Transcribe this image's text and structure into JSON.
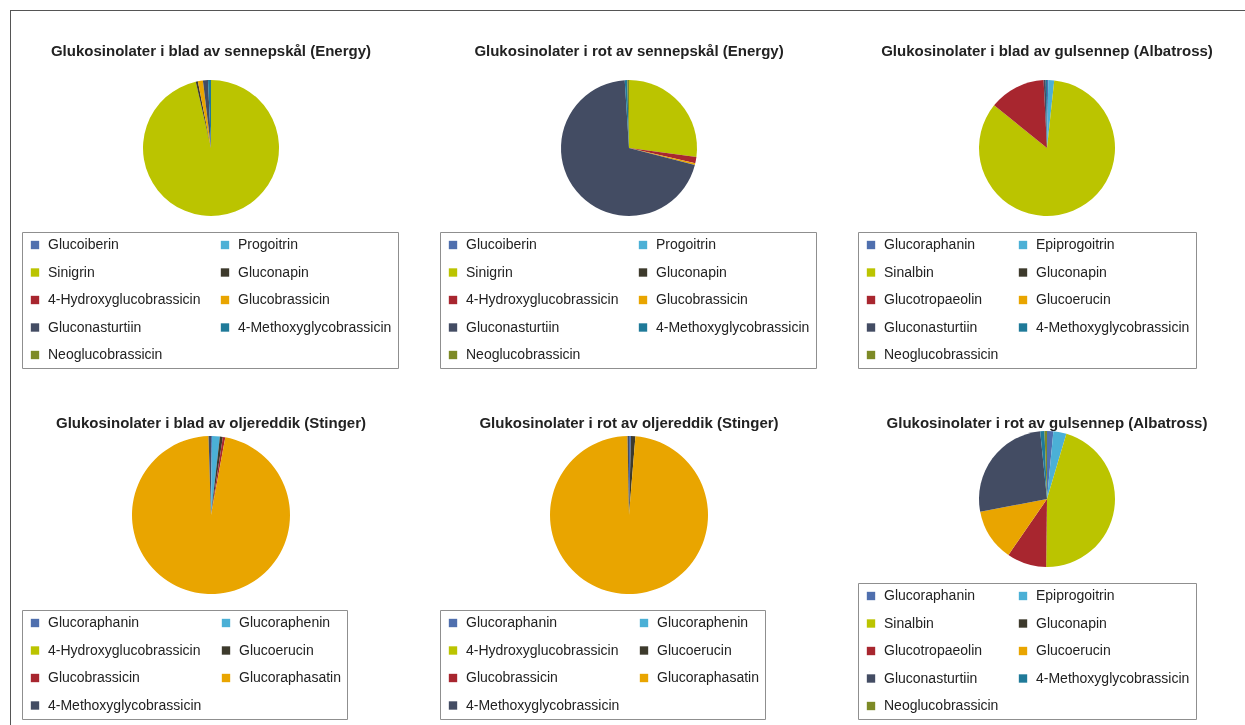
{
  "chart_data": [
    {
      "type": "pie",
      "title": "Glukosinolater i blad av sennepskål (Energy)",
      "categories": [
        "Glucoiberin",
        "Progoitrin",
        "Sinigrin",
        "Gluconapin",
        "4-Hydroxyglucobrassicin",
        "Glucobrassicin",
        "Gluconasturtiin",
        "4-Methoxyglycobrassicin",
        "Neoglucobrassicin"
      ],
      "values": [
        0,
        0,
        96.4,
        0.5,
        0,
        1.2,
        1.2,
        0.7,
        0
      ],
      "colors": [
        "#4f6fae",
        "#4bb0d6",
        "#bbc400",
        "#3d3a2c",
        "#a8262f",
        "#e9a500",
        "#434c63",
        "#1f7a99",
        "#7d8a26"
      ],
      "legend": "bottom"
    },
    {
      "type": "pie",
      "title": "Glukosinolater i rot av sennepskål (Energy)",
      "categories": [
        "Glucoiberin",
        "Progoitrin",
        "Sinigrin",
        "Gluconapin",
        "4-Hydroxyglucobrassicin",
        "Glucobrassicin",
        "Gluconasturtiin",
        "4-Methoxyglycobrassicin",
        "Neoglucobrassicin"
      ],
      "values": [
        0,
        0,
        27.1,
        0,
        1.5,
        0.4,
        70.0,
        0.6,
        0.4
      ],
      "colors": [
        "#4f6fae",
        "#4bb0d6",
        "#bbc400",
        "#3d3a2c",
        "#a8262f",
        "#e9a500",
        "#434c63",
        "#1f7a99",
        "#7d8a26"
      ],
      "legend": "bottom"
    },
    {
      "type": "pie",
      "title": "Glukosinolater i blad av gulsennep (Albatross)",
      "categories": [
        "Glucoraphanin",
        "Epiprogoitrin",
        "Sinalbin",
        "Gluconapin",
        "Glucotropaeolin",
        "Glucoerucin",
        "Gluconasturtiin",
        "4-Methoxyglycobrassicin",
        "Neoglucobrassicin"
      ],
      "values": [
        0.3,
        1.4,
        84.1,
        0,
        13.4,
        0,
        0.5,
        0.3,
        0
      ],
      "colors": [
        "#4f6fae",
        "#4bb0d6",
        "#bbc400",
        "#3d3a2c",
        "#a8262f",
        "#e9a500",
        "#434c63",
        "#1f7a99",
        "#7d8a26"
      ],
      "legend": "bottom"
    },
    {
      "type": "pie",
      "title": "Glukosinolater i blad av oljereddik (Stinger)",
      "categories": [
        "Glucoraphanin",
        "Glucoraphenin",
        "4-Hydroxyglucobrassicin",
        "Glucoerucin",
        "Glucobrassicin",
        "Glucoraphasatin",
        "4-Methoxyglycobrassicin"
      ],
      "values": [
        0.2,
        1.6,
        0,
        0.6,
        0.5,
        96.6,
        0.5
      ],
      "colors": [
        "#4f6fae",
        "#4bb0d6",
        "#bbc400",
        "#3d3a2c",
        "#a8262f",
        "#e9a500",
        "#434c63"
      ],
      "legend": "bottom"
    },
    {
      "type": "pie",
      "title": "Glukosinolater i rot av oljereddik (Stinger)",
      "categories": [
        "Glucoraphanin",
        "Glucoraphenin",
        "4-Hydroxyglucobrassicin",
        "Glucoerucin",
        "Glucobrassicin",
        "Glucoraphasatin",
        "4-Methoxyglycobrassicin"
      ],
      "values": [
        0.4,
        0,
        0,
        0.9,
        0,
        98.4,
        0.3
      ],
      "colors": [
        "#4f6fae",
        "#4bb0d6",
        "#bbc400",
        "#3d3a2c",
        "#a8262f",
        "#e9a500",
        "#434c63"
      ],
      "legend": "bottom"
    },
    {
      "type": "pie",
      "title": "Glukosinolater i rot av gulsennep (Albatross)",
      "categories": [
        "Glucoraphanin",
        "Epiprogoitrin",
        "Sinalbin",
        "Gluconapin",
        "Glucotropaeolin",
        "Glucoerucin",
        "Gluconasturtiin",
        "4-Methoxyglycobrassicin",
        "Neoglucobrassicin"
      ],
      "values": [
        1.5,
        3.1,
        45.6,
        0,
        9.4,
        12.4,
        26.4,
        1.0,
        0.6
      ],
      "colors": [
        "#4f6fae",
        "#4bb0d6",
        "#bbc400",
        "#3d3a2c",
        "#a8262f",
        "#e9a500",
        "#434c63",
        "#1f7a99",
        "#7d8a26"
      ],
      "legend": "bottom"
    }
  ]
}
